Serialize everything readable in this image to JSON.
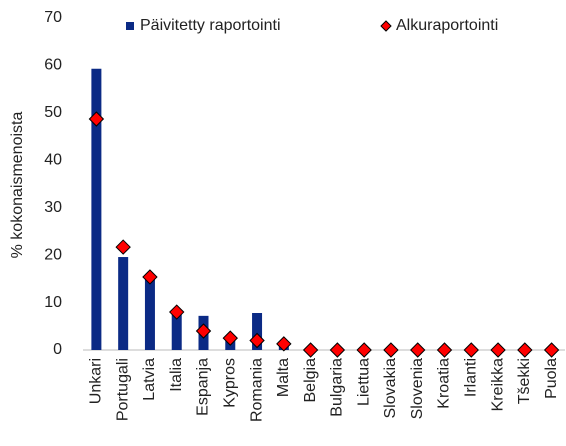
{
  "chart_data": {
    "type": "bar",
    "y_label": "% kokonaismenoista",
    "categories": [
      "Unkari",
      "Portugali",
      "Latvia",
      "Italia",
      "Espanja",
      "Kypros",
      "Romania",
      "Malta",
      "Belgia",
      "Bulgaria",
      "Liettua",
      "Slovakia",
      "Slovenia",
      "Kroatia",
      "Irlanti",
      "Kreikka",
      "Tšekki",
      "Puola"
    ],
    "series": [
      {
        "name": "Päivitetty raportointi",
        "color": "#0b2a85",
        "marker": "bar",
        "values": [
          59.3,
          19.6,
          15,
          8,
          7.2,
          2.7,
          7.8,
          1.2,
          0,
          0,
          0,
          0,
          0,
          0,
          0,
          0,
          0,
          0
        ]
      },
      {
        "name": "Alkuraportointi",
        "color": "#ff0000",
        "marker": "diamond",
        "values": [
          48.7,
          21.7,
          15.4,
          8,
          4,
          2.5,
          2,
          1.3,
          0,
          0,
          0,
          0,
          0,
          0,
          0,
          0,
          0,
          0
        ]
      }
    ],
    "ylim": [
      0,
      70
    ],
    "yticks": [
      0,
      10,
      20,
      30,
      40,
      50,
      60,
      70
    ],
    "grid": false
  }
}
